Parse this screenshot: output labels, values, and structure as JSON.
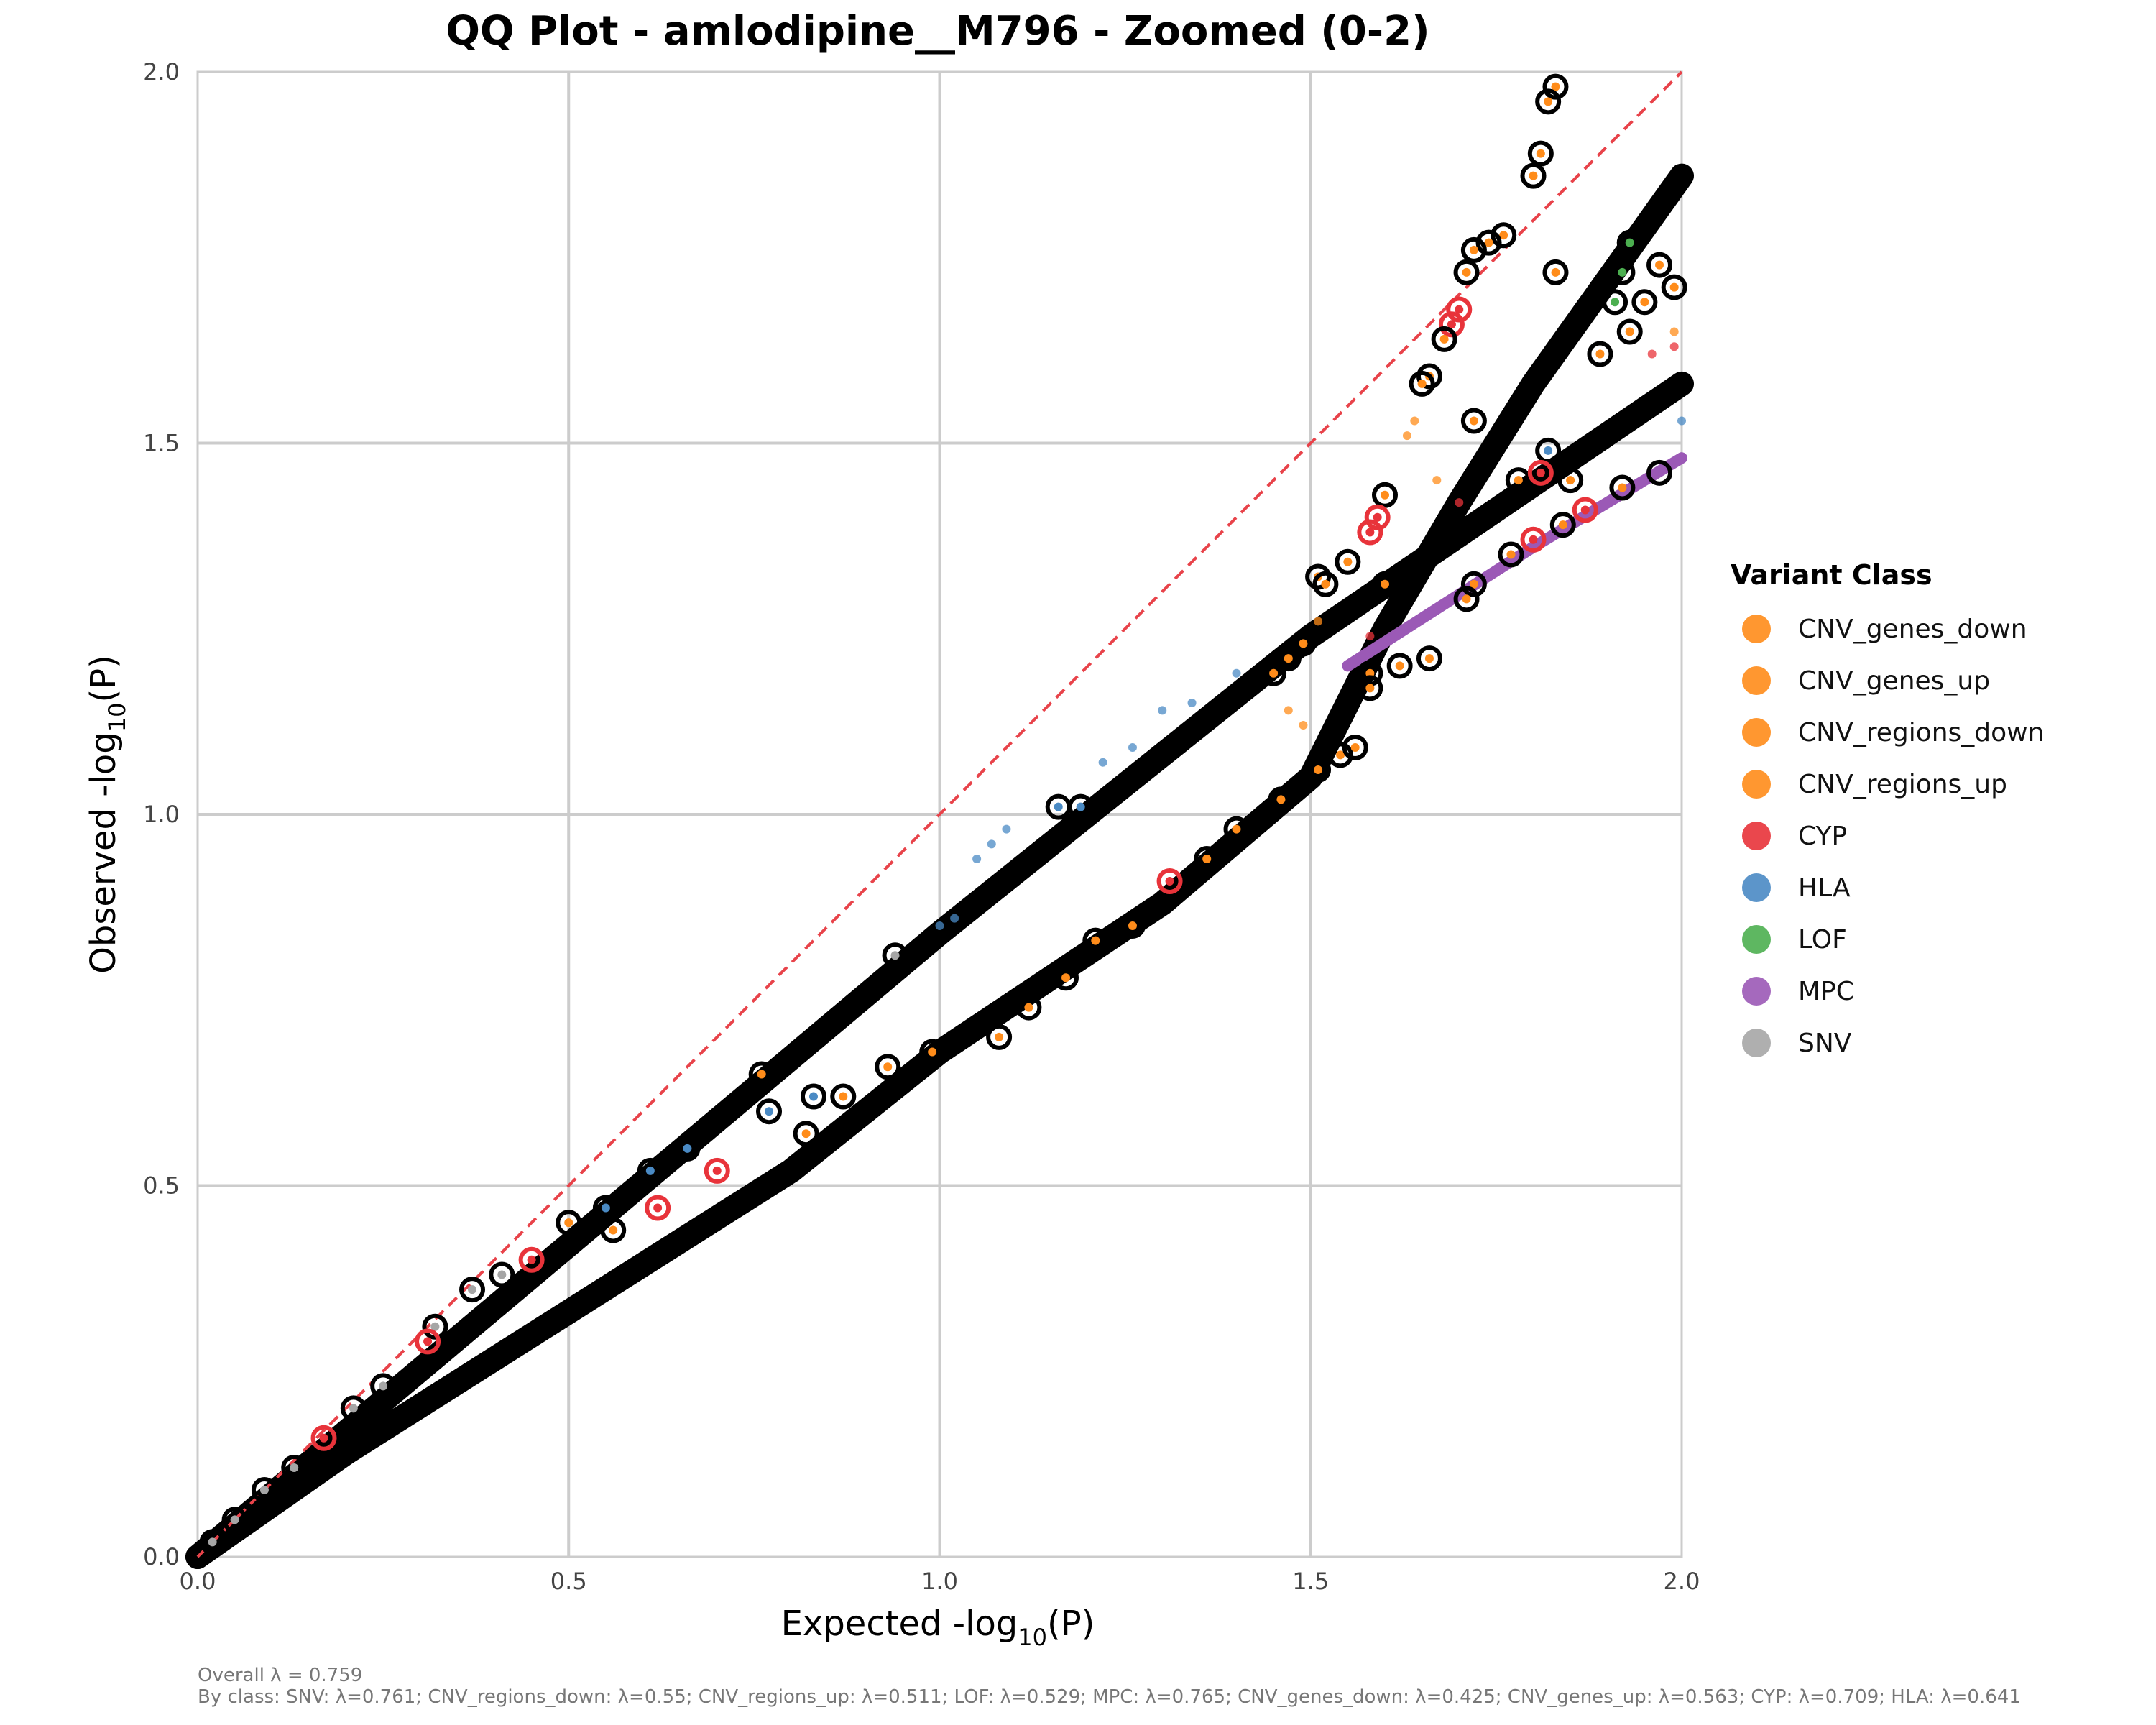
{
  "chart_data": {
    "type": "scatter",
    "title": "QQ Plot - amlodipine__M796 - Zoomed (0-2)",
    "xlabel": {
      "pre": "Expected -log",
      "sub": "10",
      "post": "(P)"
    },
    "ylabel": {
      "pre": "Observed -log",
      "sub": "10",
      "post": "(P)"
    },
    "xlim": [
      0,
      2
    ],
    "ylim": [
      0,
      2
    ],
    "x_ticks": [
      "0.0",
      "0.5",
      "1.0",
      "1.5",
      "2.0"
    ],
    "y_ticks": [
      "0.0",
      "0.5",
      "1.0",
      "1.5",
      "2.0"
    ],
    "grid": true,
    "reference_line": {
      "style": "dashed",
      "color": "#e8434a",
      "from": [
        0,
        0
      ],
      "to": [
        2,
        2
      ]
    },
    "legend": {
      "title": "Variant Class",
      "placement": "right",
      "entries": [
        {
          "label": "CNV_genes_down",
          "color": "#ff8c1a"
        },
        {
          "label": "CNV_genes_up",
          "color": "#ff8c1a"
        },
        {
          "label": "CNV_regions_down",
          "color": "#ff8c1a"
        },
        {
          "label": "CNV_regions_up",
          "color": "#ff8c1a"
        },
        {
          "label": "CYP",
          "color": "#e8333a"
        },
        {
          "label": "HLA",
          "color": "#4a8ac4"
        },
        {
          "label": "LOF",
          "color": "#4caf50"
        },
        {
          "label": "MPC",
          "color": "#9b59b6"
        },
        {
          "label": "SNV",
          "color": "#a6a6a6"
        }
      ]
    },
    "trends": [
      {
        "name": "main",
        "points": [
          [
            0,
            0
          ],
          [
            0.5,
            0.42
          ],
          [
            1,
            0.84
          ],
          [
            1.5,
            1.24
          ],
          [
            2,
            1.58
          ]
        ]
      },
      {
        "name": "lower",
        "points": [
          [
            0,
            0
          ],
          [
            0.2,
            0.14
          ],
          [
            0.5,
            0.33
          ],
          [
            0.8,
            0.52
          ],
          [
            1.0,
            0.68
          ],
          [
            1.3,
            0.88
          ],
          [
            1.5,
            1.05
          ],
          [
            1.6,
            1.25
          ],
          [
            1.7,
            1.42
          ],
          [
            1.8,
            1.58
          ],
          [
            1.9,
            1.72
          ],
          [
            2,
            1.86
          ]
        ]
      },
      {
        "name": "mpc",
        "points": [
          [
            1.55,
            1.2
          ],
          [
            1.8,
            1.36
          ],
          [
            2,
            1.48
          ]
        ]
      }
    ],
    "points": [
      {
        "x": 1.16,
        "y": 1.01,
        "class": "HLA"
      },
      {
        "x": 1.19,
        "y": 1.01,
        "class": "HLA"
      },
      {
        "x": 0.83,
        "y": 0.62,
        "class": "HLA"
      },
      {
        "x": 0.77,
        "y": 0.6,
        "class": "HLA"
      },
      {
        "x": 0.66,
        "y": 0.55,
        "class": "HLA"
      },
      {
        "x": 0.61,
        "y": 0.52,
        "class": "HLA"
      },
      {
        "x": 0.55,
        "y": 0.47,
        "class": "HLA"
      },
      {
        "x": 0.5,
        "y": 0.45,
        "class": "CNV_regions_down"
      },
      {
        "x": 0.76,
        "y": 0.65,
        "class": "CNV_genes_up"
      },
      {
        "x": 0.94,
        "y": 0.81,
        "class": "SNV"
      },
      {
        "x": 1.83,
        "y": 1.98,
        "class": "CNV_genes_up"
      },
      {
        "x": 1.82,
        "y": 1.96,
        "class": "CNV_genes_up"
      },
      {
        "x": 1.81,
        "y": 1.89,
        "class": "CNV_genes_up"
      },
      {
        "x": 1.8,
        "y": 1.86,
        "class": "CNV_genes_up"
      },
      {
        "x": 1.76,
        "y": 1.78,
        "class": "CNV_genes_up"
      },
      {
        "x": 1.74,
        "y": 1.77,
        "class": "CNV_genes_up"
      },
      {
        "x": 1.72,
        "y": 1.76,
        "class": "CNV_genes_up"
      },
      {
        "x": 1.71,
        "y": 1.73,
        "class": "CNV_genes_up"
      },
      {
        "x": 1.7,
        "y": 1.68,
        "class": "CYP"
      },
      {
        "x": 1.69,
        "y": 1.66,
        "class": "CYP"
      },
      {
        "x": 1.68,
        "y": 1.64,
        "class": "CNV_genes_up"
      },
      {
        "x": 1.66,
        "y": 1.59,
        "class": "CNV_genes_up"
      },
      {
        "x": 1.65,
        "y": 1.58,
        "class": "CNV_genes_up"
      },
      {
        "x": 1.83,
        "y": 1.73,
        "class": "CNV_genes_up"
      },
      {
        "x": 1.95,
        "y": 1.69,
        "class": "CNV_genes_up"
      },
      {
        "x": 1.99,
        "y": 1.71,
        "class": "CNV_genes_up"
      },
      {
        "x": 1.97,
        "y": 1.74,
        "class": "CNV_genes_up"
      },
      {
        "x": 1.93,
        "y": 1.77,
        "class": "LOF"
      },
      {
        "x": 1.92,
        "y": 1.73,
        "class": "LOF"
      },
      {
        "x": 1.91,
        "y": 1.69,
        "class": "LOF"
      },
      {
        "x": 1.93,
        "y": 1.65,
        "class": "CNV_genes_up"
      },
      {
        "x": 1.89,
        "y": 1.62,
        "class": "CNV_genes_up"
      },
      {
        "x": 1.82,
        "y": 1.49,
        "class": "HLA"
      },
      {
        "x": 1.85,
        "y": 1.45,
        "class": "CNV_genes_up"
      },
      {
        "x": 1.87,
        "y": 1.41,
        "class": "CYP"
      },
      {
        "x": 1.92,
        "y": 1.44,
        "class": "CNV_genes_up"
      },
      {
        "x": 1.97,
        "y": 1.46,
        "class": "MPC"
      },
      {
        "x": 1.72,
        "y": 1.53,
        "class": "CNV_genes_up"
      },
      {
        "x": 1.78,
        "y": 1.45,
        "class": "CNV_genes_up"
      },
      {
        "x": 1.81,
        "y": 1.46,
        "class": "CYP"
      },
      {
        "x": 1.6,
        "y": 1.43,
        "class": "CNV_genes_up"
      },
      {
        "x": 1.59,
        "y": 1.4,
        "class": "CYP"
      },
      {
        "x": 1.58,
        "y": 1.38,
        "class": "CYP"
      },
      {
        "x": 1.55,
        "y": 1.34,
        "class": "CNV_genes_up"
      },
      {
        "x": 1.51,
        "y": 1.32,
        "class": "CNV_genes_up"
      },
      {
        "x": 1.52,
        "y": 1.31,
        "class": "CNV_genes_up"
      },
      {
        "x": 1.6,
        "y": 1.31,
        "class": "CNV_genes_up"
      },
      {
        "x": 1.58,
        "y": 1.19,
        "class": "CNV_genes_up"
      },
      {
        "x": 1.62,
        "y": 1.2,
        "class": "CNV_genes_up"
      },
      {
        "x": 1.66,
        "y": 1.21,
        "class": "CNV_genes_up"
      },
      {
        "x": 1.58,
        "y": 1.17,
        "class": "CNV_genes_up"
      },
      {
        "x": 1.72,
        "y": 1.31,
        "class": "CNV_genes_up"
      },
      {
        "x": 1.71,
        "y": 1.29,
        "class": "CNV_genes_up"
      },
      {
        "x": 1.77,
        "y": 1.35,
        "class": "CNV_genes_up"
      },
      {
        "x": 1.8,
        "y": 1.37,
        "class": "CYP"
      },
      {
        "x": 1.84,
        "y": 1.39,
        "class": "CNV_genes_up"
      },
      {
        "x": 1.47,
        "y": 1.21,
        "class": "CNV_genes_up"
      },
      {
        "x": 1.49,
        "y": 1.23,
        "class": "CNV_genes_up"
      },
      {
        "x": 1.45,
        "y": 1.19,
        "class": "CNV_genes_up"
      },
      {
        "x": 1.51,
        "y": 1.06,
        "class": "CNV_genes_up"
      },
      {
        "x": 1.54,
        "y": 1.08,
        "class": "CNV_genes_up"
      },
      {
        "x": 1.56,
        "y": 1.09,
        "class": "CNV_genes_up"
      },
      {
        "x": 1.46,
        "y": 1.02,
        "class": "CNV_genes_up"
      },
      {
        "x": 1.4,
        "y": 0.98,
        "class": "CNV_genes_up"
      },
      {
        "x": 1.36,
        "y": 0.94,
        "class": "CNV_genes_up"
      },
      {
        "x": 1.31,
        "y": 0.91,
        "class": "CYP"
      },
      {
        "x": 1.26,
        "y": 0.85,
        "class": "CNV_genes_up"
      },
      {
        "x": 1.21,
        "y": 0.83,
        "class": "CNV_genes_up"
      },
      {
        "x": 1.17,
        "y": 0.78,
        "class": "CNV_genes_up"
      },
      {
        "x": 1.12,
        "y": 0.74,
        "class": "CNV_genes_up"
      },
      {
        "x": 1.08,
        "y": 0.7,
        "class": "CNV_genes_up"
      },
      {
        "x": 0.99,
        "y": 0.68,
        "class": "CNV_genes_up"
      },
      {
        "x": 0.93,
        "y": 0.66,
        "class": "CNV_genes_up"
      },
      {
        "x": 0.87,
        "y": 0.62,
        "class": "CNV_genes_up"
      },
      {
        "x": 0.82,
        "y": 0.57,
        "class": "CNV_genes_up"
      },
      {
        "x": 0.7,
        "y": 0.52,
        "class": "CYP"
      },
      {
        "x": 0.62,
        "y": 0.47,
        "class": "CYP"
      },
      {
        "x": 0.56,
        "y": 0.44,
        "class": "CNV_genes_up"
      },
      {
        "x": 0.45,
        "y": 0.4,
        "class": "CYP"
      },
      {
        "x": 0.41,
        "y": 0.38,
        "class": "SNV"
      },
      {
        "x": 0.37,
        "y": 0.36,
        "class": "SNV"
      },
      {
        "x": 0.32,
        "y": 0.31,
        "class": "SNV"
      },
      {
        "x": 0.31,
        "y": 0.29,
        "class": "CYP"
      },
      {
        "x": 0.25,
        "y": 0.23,
        "class": "SNV"
      },
      {
        "x": 0.21,
        "y": 0.2,
        "class": "SNV"
      },
      {
        "x": 0.17,
        "y": 0.16,
        "class": "CYP"
      },
      {
        "x": 0.13,
        "y": 0.12,
        "class": "SNV"
      },
      {
        "x": 0.09,
        "y": 0.09,
        "class": "SNV"
      },
      {
        "x": 0.05,
        "y": 0.05,
        "class": "SNV"
      },
      {
        "x": 0.02,
        "y": 0.02,
        "class": "SNV"
      }
    ],
    "dots": [
      {
        "x": 1.05,
        "y": 0.94,
        "class": "HLA"
      },
      {
        "x": 1.07,
        "y": 0.96,
        "class": "HLA"
      },
      {
        "x": 1.09,
        "y": 0.98,
        "class": "HLA"
      },
      {
        "x": 1.22,
        "y": 1.07,
        "class": "HLA"
      },
      {
        "x": 1.26,
        "y": 1.09,
        "class": "HLA"
      },
      {
        "x": 1.3,
        "y": 1.14,
        "class": "HLA"
      },
      {
        "x": 1.34,
        "y": 1.15,
        "class": "HLA"
      },
      {
        "x": 1.4,
        "y": 1.19,
        "class": "HLA"
      },
      {
        "x": 1.0,
        "y": 0.85,
        "class": "HLA"
      },
      {
        "x": 1.02,
        "y": 0.86,
        "class": "HLA"
      },
      {
        "x": 2.0,
        "y": 1.53,
        "class": "HLA"
      },
      {
        "x": 1.63,
        "y": 1.51,
        "class": "CNV_genes_up"
      },
      {
        "x": 1.64,
        "y": 1.53,
        "class": "CNV_genes_up"
      },
      {
        "x": 1.67,
        "y": 1.45,
        "class": "CNV_genes_up"
      },
      {
        "x": 1.99,
        "y": 1.65,
        "class": "CNV_genes_up"
      },
      {
        "x": 1.51,
        "y": 1.26,
        "class": "CNV_genes_up"
      },
      {
        "x": 1.47,
        "y": 1.14,
        "class": "CNV_genes_up"
      },
      {
        "x": 1.49,
        "y": 1.12,
        "class": "CNV_genes_up"
      },
      {
        "x": 1.96,
        "y": 1.62,
        "class": "CYP"
      },
      {
        "x": 1.99,
        "y": 1.63,
        "class": "CYP"
      },
      {
        "x": 1.7,
        "y": 1.42,
        "class": "CYP"
      },
      {
        "x": 1.58,
        "y": 1.24,
        "class": "CYP"
      }
    ],
    "annotations": [
      "Overall λ = 0.759",
      "By class: SNV: λ=0.761; CNV_regions_down: λ=0.55; CNV_regions_up: λ=0.511; LOF: λ=0.529; MPC: λ=0.765; CNV_genes_down: λ=0.425; CNV_genes_up: λ=0.563; CYP: λ=0.709; HLA: λ=0.641"
    ]
  }
}
